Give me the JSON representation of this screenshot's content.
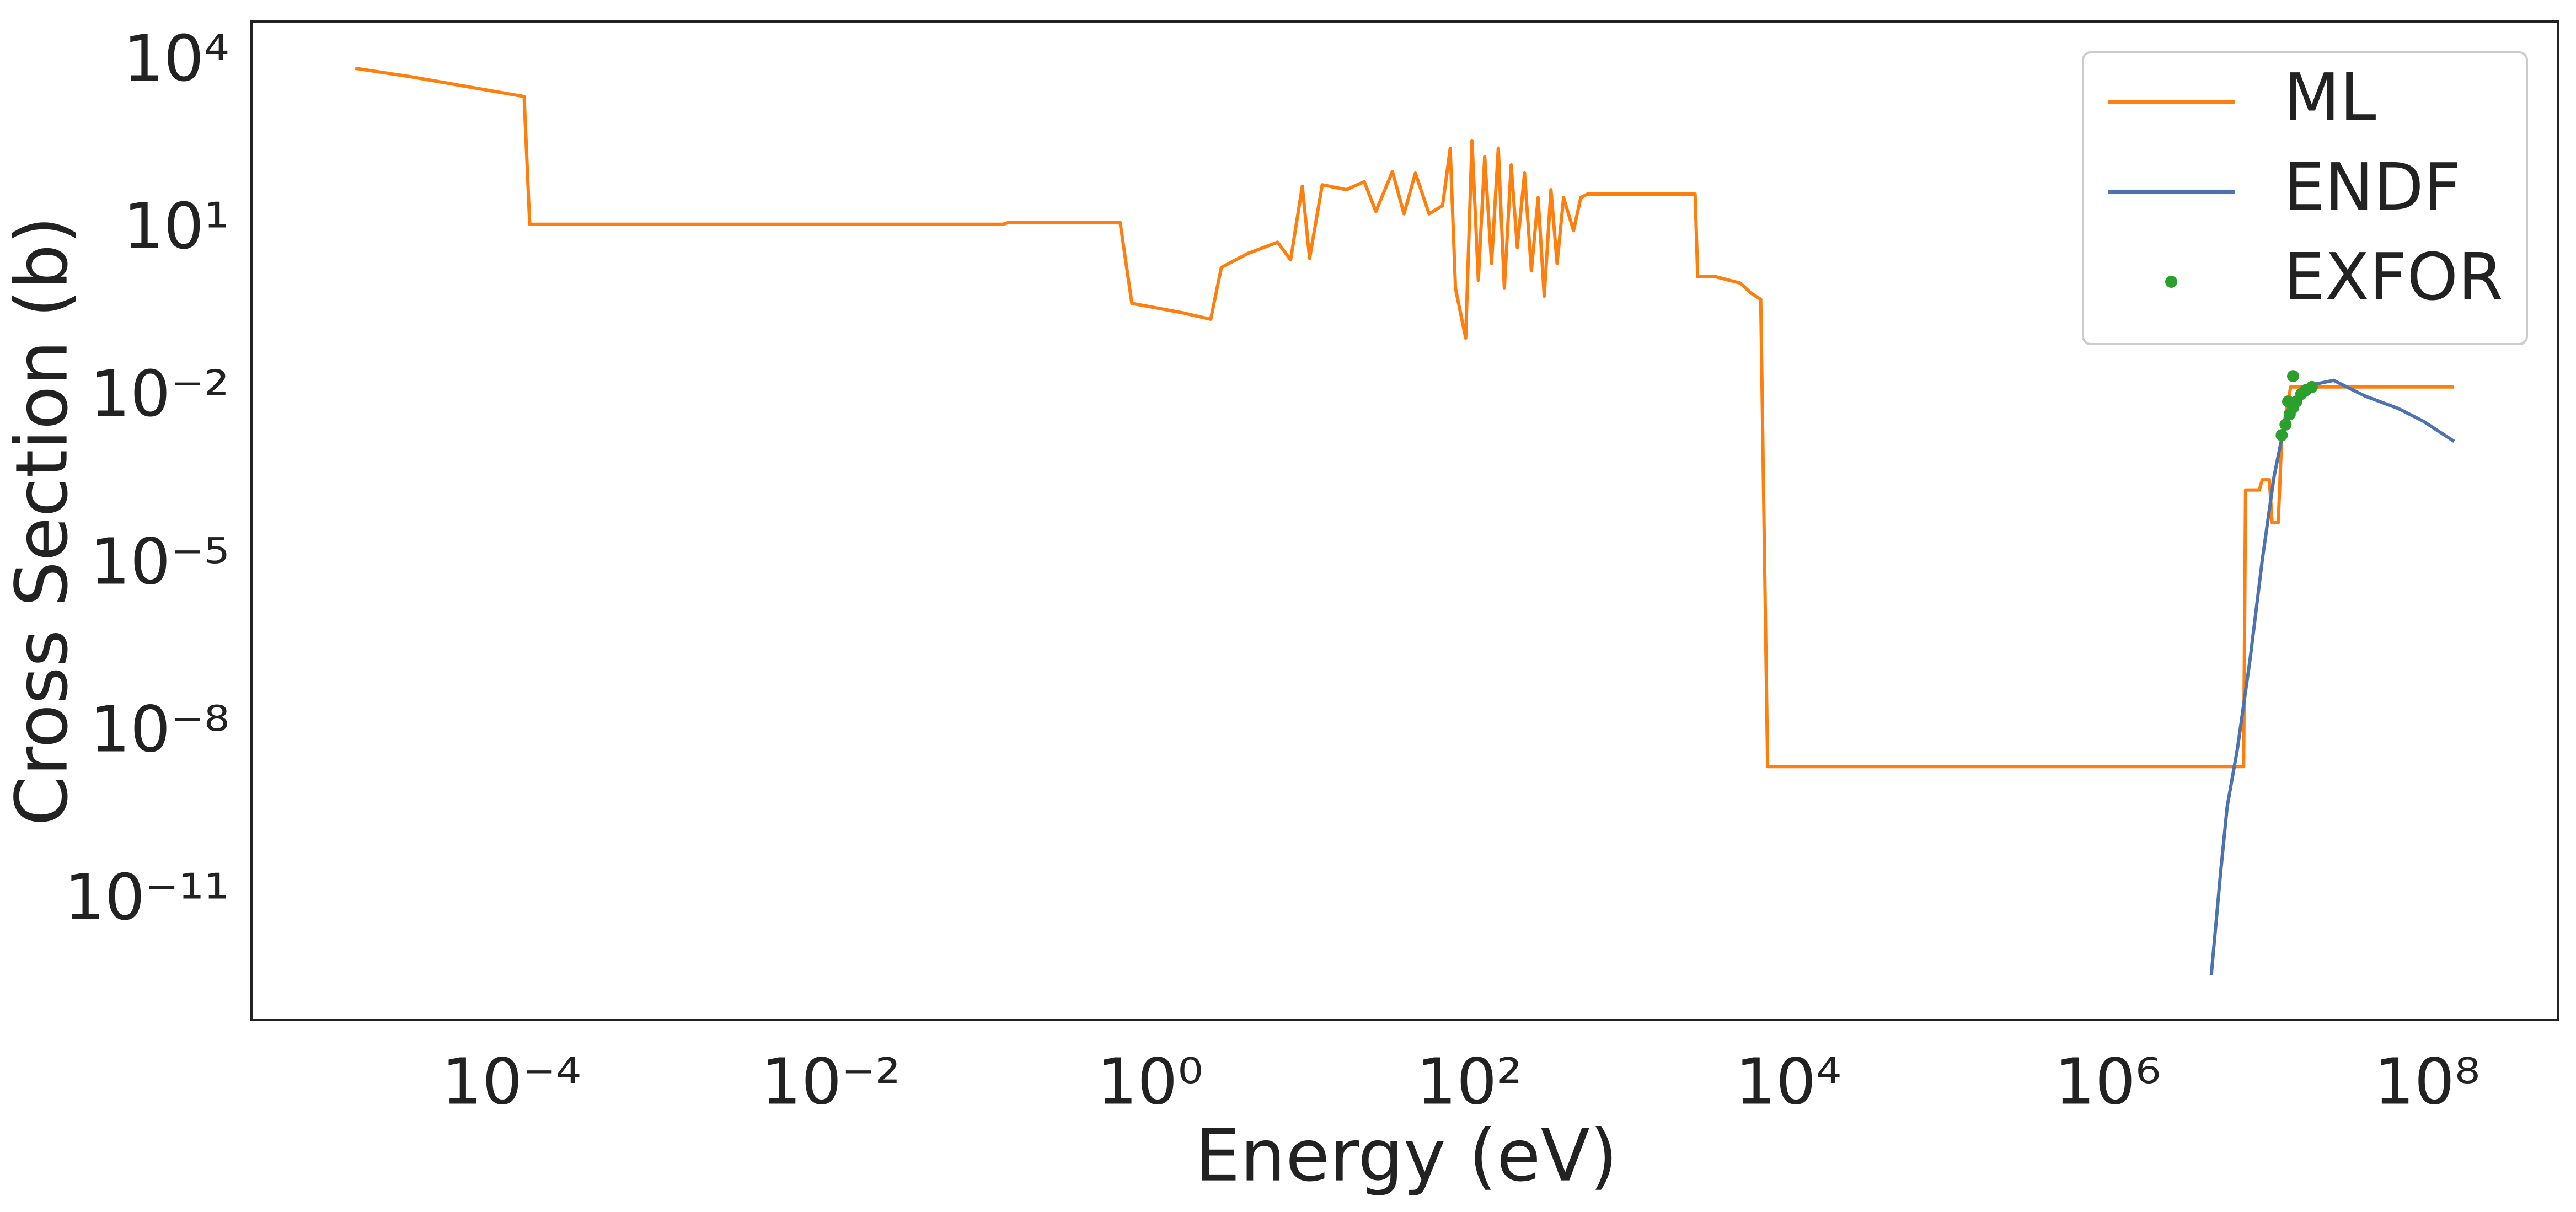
{
  "chart_data": {
    "type": "line",
    "x_label": "Energy (eV)",
    "y_label": "Cross Section (b)",
    "xscale": "log",
    "yscale": "log",
    "xlim": [
      2.35e-06,
      660000000.0
    ],
    "ylim": [
      7.6e-14,
      55000.0
    ],
    "xticks": [
      {
        "value": 0.0001,
        "label": "10⁻⁴"
      },
      {
        "value": 0.01,
        "label": "10⁻²"
      },
      {
        "value": 1,
        "label": "10⁰"
      },
      {
        "value": 100,
        "label": "10²"
      },
      {
        "value": 10000.0,
        "label": "10⁴"
      },
      {
        "value": 1000000.0,
        "label": "10⁶"
      },
      {
        "value": 100000000.0,
        "label": "10⁸"
      }
    ],
    "yticks": [
      {
        "value": 10000.0,
        "label": "10⁴"
      },
      {
        "value": 10,
        "label": "10¹"
      },
      {
        "value": 0.01,
        "label": "10⁻²"
      },
      {
        "value": 1e-05,
        "label": "10⁻⁵"
      },
      {
        "value": 1e-08,
        "label": "10⁻⁸"
      },
      {
        "value": 1e-11,
        "label": "10⁻¹¹"
      }
    ],
    "grid": false,
    "legend": "upper right",
    "series": [
      {
        "name": "ML",
        "color": "#ff7f0e",
        "kind": "line",
        "x": [
          1.05e-05,
          2.3e-05,
          0.00012,
          0.00013,
          0.12,
          0.13,
          0.65,
          0.77,
          1.6,
          2.4,
          2.8,
          4.1,
          6.3,
          7.6,
          9,
          10,
          12,
          17,
          22,
          26,
          33,
          39,
          46,
          56,
          68,
          76,
          82,
          95,
          104,
          114,
          125,
          138,
          152,
          166,
          183,
          200,
          222,
          245,
          270,
          295,
          325,
          355,
          390,
          450,
          500,
          550,
          2600,
          2700,
          3500,
          5000,
          5800,
          6700,
          7400,
          7100000.0,
          7300000.0,
          8900000.0,
          9300000.0,
          10300000.0,
          10700000.0,
          11700000.0,
          12300000.0,
          14000000.0,
          148000000.0
        ],
        "values": [
          8000,
          5700,
          2500,
          13,
          13,
          14,
          14,
          0.5,
          0.34,
          0.26,
          2.2,
          3.9,
          6.2,
          3,
          62,
          3.2,
          66,
          54,
          75,
          22,
          114,
          20,
          107,
          20,
          28,
          295,
          0.93,
          0.12,
          410,
          1.3,
          210,
          2.6,
          300,
          0.93,
          150,
          5,
          107,
          1.9,
          39,
          0.67,
          54,
          2.6,
          39,
          10,
          39,
          45,
          45,
          1.5,
          1.5,
          1.15,
          0.77,
          0.59,
          2.6e-09,
          2.6e-09,
          0.00023,
          0.00023,
          0.00035,
          0.00035,
          6e-05,
          6e-05,
          0.0021,
          0.016,
          0.016
        ]
      },
      {
        "name": "ENDF",
        "color": "#4c72b0",
        "kind": "line",
        "x": [
          4450000.0,
          5100000.0,
          5600000.0,
          6500000.0,
          7800000.0,
          9300000.0,
          11000000.0,
          13000000.0,
          16000000.0,
          20000000.0,
          26000000.0,
          41000000.0,
          66000000.0,
          95000000.0,
          148000000.0
        ],
        "values": [
          4.8e-13,
          3.4e-11,
          5e-10,
          5.5e-09,
          2.2e-07,
          1.3e-05,
          0.00039,
          0.0042,
          0.011,
          0.018,
          0.021,
          0.011,
          0.0066,
          0.0039,
          0.0017
        ]
      },
      {
        "name": "EXFOR",
        "color": "#2ca02c",
        "kind": "scatter",
        "x": [
          12300000.0,
          13000000.0,
          13500000.0,
          13800000.0,
          14500000.0,
          14500000.0,
          15200000.0,
          16300000.0,
          17400000.0,
          19000000.0
        ],
        "values": [
          0.0022,
          0.0034,
          0.0088,
          0.0052,
          0.0068,
          0.025,
          0.0088,
          0.012,
          0.014,
          0.016
        ]
      }
    ]
  }
}
